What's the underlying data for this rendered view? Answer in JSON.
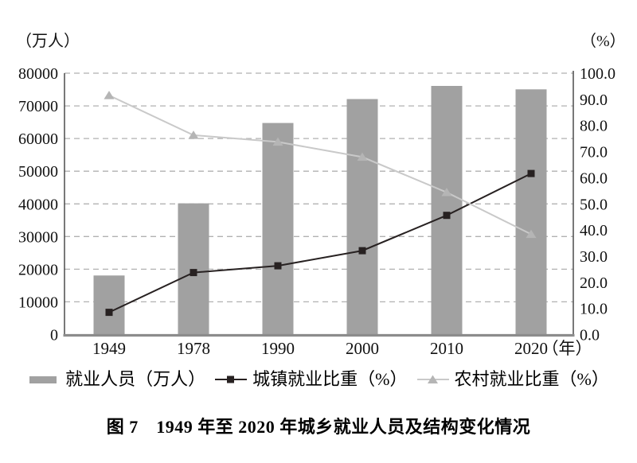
{
  "figure": {
    "caption": "图 7　1949 年至 2020 年城乡就业人员及结构变化情况"
  },
  "chart_data": {
    "type": "combo-bar-line",
    "title": "图 7　1949 年至 2020 年城乡就业人员及结构变化情况",
    "categories": [
      "1949",
      "1978",
      "1990",
      "2000",
      "2010",
      "2020"
    ],
    "series": [
      {
        "name": "就业人员（万人）",
        "type": "bar",
        "axis": "left",
        "values": [
          18082,
          40152,
          64749,
          72085,
          76105,
          75064
        ]
      },
      {
        "name": "城镇就业比重（%）",
        "type": "line",
        "axis": "right",
        "marker": "square",
        "values": [
          8.5,
          23.7,
          26.3,
          32.1,
          45.6,
          61.6
        ]
      },
      {
        "name": "农村就业比重（%）",
        "type": "line",
        "axis": "right",
        "marker": "triangle",
        "values": [
          91.5,
          76.3,
          73.7,
          67.9,
          54.4,
          38.4
        ]
      }
    ],
    "left_axis": {
      "unit": "（万人）",
      "min": 0,
      "max": 80000,
      "ticks": [
        0,
        10000,
        20000,
        30000,
        40000,
        50000,
        60000,
        70000,
        80000
      ]
    },
    "right_axis": {
      "unit": "（%）",
      "min": 0,
      "max": 100,
      "ticks": [
        "0.0",
        "10.0",
        "20.0",
        "30.0",
        "40.0",
        "50.0",
        "60.0",
        "70.0",
        "80.0",
        "90.0",
        "100.0"
      ]
    },
    "x_axis": {
      "unit": "（年）"
    },
    "grid": "horizontal-dashed",
    "legend_position": "bottom"
  },
  "legend": {
    "items": [
      {
        "label": "就业人员（万人）",
        "marker": "bar"
      },
      {
        "label": "城镇就业比重（%）",
        "marker": "square-line"
      },
      {
        "label": "农村就业比重（%）",
        "marker": "triangle-line"
      }
    ]
  },
  "colors": {
    "bar": "#a1a1a1",
    "urban_line": "#272121",
    "rural_line": "#c9c9c9",
    "rural_marker": "#b5b5b5",
    "grid": "#b1b1b1",
    "axis": "#3f3f3f",
    "baseline": "#8c8c8c",
    "text": "#111111"
  }
}
